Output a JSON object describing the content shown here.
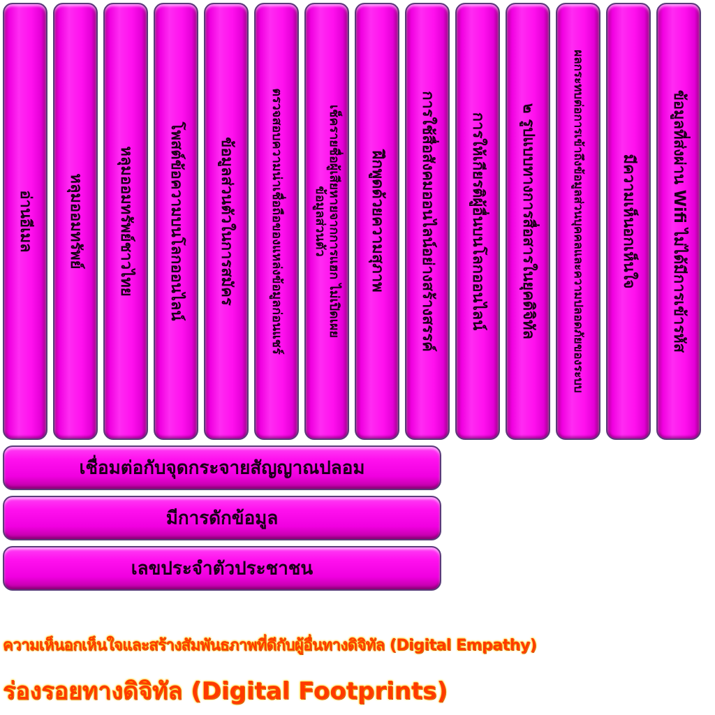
{
  "vertical_buttons": [
    "อ่านอีเมล",
    "หลุมออมทรัพย์",
    "หลุมออมทรัพย์ชาวไทย",
    "โพสต์ข้อความบนโลกออนไลน์",
    "ข้อมูลส่วนตัวในการสมัคร",
    "ตรวจสอบความน่าเชื่อถือของแหล่งข้อมูลก่อนแชร์",
    "เช็ครายชื่อผู้เสียหายจากการแฮก ไม่เปิดเผยข้อมูลส่วนตัว",
    "ฝึกพูดด้วยความสุภาพ",
    "การใช้สื่อสังคมออนไลน์อย่างสร้างสรรค์",
    "การให้เกียรติผู้อื่นบนโลกออนไลน์",
    "๒ รูปแบบทางการสื่อสารในยุคดิจิทัล",
    "ผลกระทบต่อการเข้าถึงข้อมูลส่วนบุคคลและความปลอดภัยของระบบ",
    "มีความเห็นอกเห็นใจ",
    "ข้อมูลที่ส่งผ่าน Wifi ไม่ได้มีการเข้ารหัส"
  ],
  "horizontal_buttons": [
    "เชื่อมต่อกับจุดกระจายสัญญาณปลอม",
    "มีการดักข้อมูล",
    "เลขประจำตัวประชาชน"
  ],
  "categories": {
    "empathy": "ความเห็นอกเห็นใจและสร้างสัมพันธภาพที่ดีกับผู้อื่นทางดิจิทัล (Digital Empathy)",
    "footprints": "ร่องรอยทางดิจิทัล (Digital Footprints)"
  }
}
